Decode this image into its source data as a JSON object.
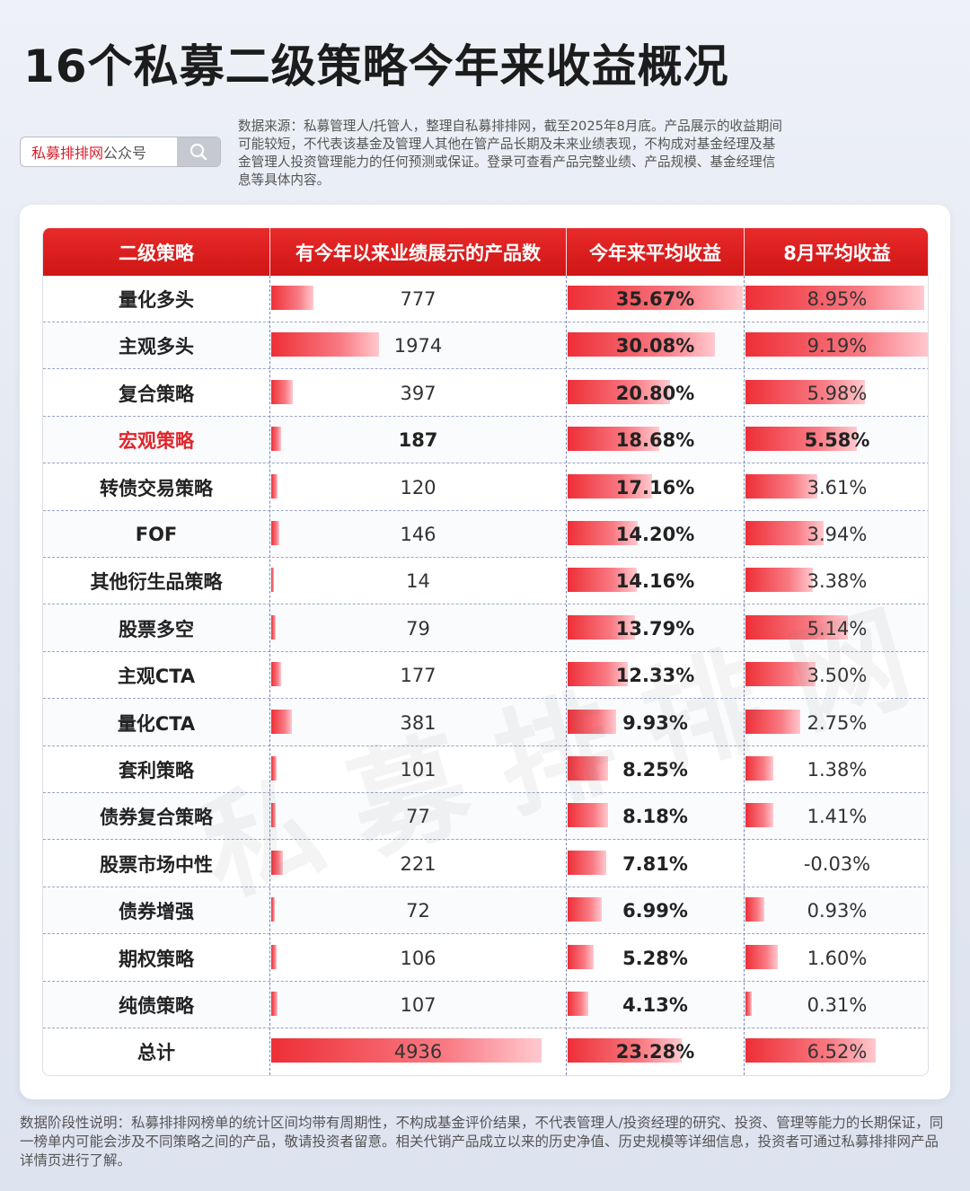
{
  "title": "16个私募二级策略今年来收益概况",
  "search": {
    "brand": "私募排排网",
    "suffix": "公众号",
    "icon": "search-icon"
  },
  "source_note": "数据来源：私募管理人/托管人，整理自私募排排网，截至2025年8月底。产品展示的收益期间可能较短，不代表该基金及管理人其他在管产品长期及未来业绩表现，不构成对基金经理及基金管理人投资管理能力的任何预测或保证。登录可查看产品完整业绩、产品规模、基金经理信息等具体内容。",
  "footnote": "数据阶段性说明：私募排排网榜单的统计区间均带有周期性，不构成基金评价结果，不代表管理人/投资经理的研究、投资、管理等能力的长期保证，同一榜单内可能会涉及不同策略之间的产品，敬请投资者留意。相关代销产品成立以来的历史净值、历史规模等详细信息，投资者可通过私募排排网产品详情页进行了解。",
  "watermark": "私募排排网",
  "colors": {
    "header": "#d91c1c",
    "bar": "#ef3a42",
    "highlight": "#e0262b"
  },
  "chart_data": {
    "type": "table",
    "columns": [
      "二级策略",
      "有今年以来业绩展示的产品数",
      "今年来平均收益",
      "8月平均收益"
    ],
    "highlight_row": "宏观策略",
    "rows": [
      {
        "strategy": "量化多头",
        "count": 777,
        "count_label": "777",
        "ytd": 35.67,
        "ytd_label": "35.67%",
        "aug": 8.95,
        "aug_label": "8.95%"
      },
      {
        "strategy": "主观多头",
        "count": 1974,
        "count_label": "1974",
        "ytd": 30.08,
        "ytd_label": "30.08%",
        "aug": 9.19,
        "aug_label": "9.19%"
      },
      {
        "strategy": "复合策略",
        "count": 397,
        "count_label": "397",
        "ytd": 20.8,
        "ytd_label": "20.80%",
        "aug": 5.98,
        "aug_label": "5.98%"
      },
      {
        "strategy": "宏观策略",
        "count": 187,
        "count_label": "187",
        "ytd": 18.68,
        "ytd_label": "18.68%",
        "aug": 5.58,
        "aug_label": "5.58%"
      },
      {
        "strategy": "转债交易策略",
        "count": 120,
        "count_label": "120",
        "ytd": 17.16,
        "ytd_label": "17.16%",
        "aug": 3.61,
        "aug_label": "3.61%"
      },
      {
        "strategy": "FOF",
        "count": 146,
        "count_label": "146",
        "ytd": 14.2,
        "ytd_label": "14.20%",
        "aug": 3.94,
        "aug_label": "3.94%"
      },
      {
        "strategy": "其他衍生品策略",
        "count": 14,
        "count_label": "14",
        "ytd": 14.16,
        "ytd_label": "14.16%",
        "aug": 3.38,
        "aug_label": "3.38%"
      },
      {
        "strategy": "股票多空",
        "count": 79,
        "count_label": "79",
        "ytd": 13.79,
        "ytd_label": "13.79%",
        "aug": 5.14,
        "aug_label": "5.14%"
      },
      {
        "strategy": "主观CTA",
        "count": 177,
        "count_label": "177",
        "ytd": 12.33,
        "ytd_label": "12.33%",
        "aug": 3.5,
        "aug_label": "3.50%"
      },
      {
        "strategy": "量化CTA",
        "count": 381,
        "count_label": "381",
        "ytd": 9.93,
        "ytd_label": "9.93%",
        "aug": 2.75,
        "aug_label": "2.75%"
      },
      {
        "strategy": "套利策略",
        "count": 101,
        "count_label": "101",
        "ytd": 8.25,
        "ytd_label": "8.25%",
        "aug": 1.38,
        "aug_label": "1.38%"
      },
      {
        "strategy": "债券复合策略",
        "count": 77,
        "count_label": "77",
        "ytd": 8.18,
        "ytd_label": "8.18%",
        "aug": 1.41,
        "aug_label": "1.41%"
      },
      {
        "strategy": "股票市场中性",
        "count": 221,
        "count_label": "221",
        "ytd": 7.81,
        "ytd_label": "7.81%",
        "aug": -0.03,
        "aug_label": "-0.03%"
      },
      {
        "strategy": "债券增强",
        "count": 72,
        "count_label": "72",
        "ytd": 6.99,
        "ytd_label": "6.99%",
        "aug": 0.93,
        "aug_label": "0.93%"
      },
      {
        "strategy": "期权策略",
        "count": 106,
        "count_label": "106",
        "ytd": 5.28,
        "ytd_label": "5.28%",
        "aug": 1.6,
        "aug_label": "1.60%"
      },
      {
        "strategy": "纯债策略",
        "count": 107,
        "count_label": "107",
        "ytd": 4.13,
        "ytd_label": "4.13%",
        "aug": 0.31,
        "aug_label": "0.31%"
      },
      {
        "strategy": "总计",
        "count": 4936,
        "count_label": "4936",
        "ytd": 23.28,
        "ytd_label": "23.28%",
        "aug": 6.52,
        "aug_label": "6.52%"
      }
    ]
  }
}
